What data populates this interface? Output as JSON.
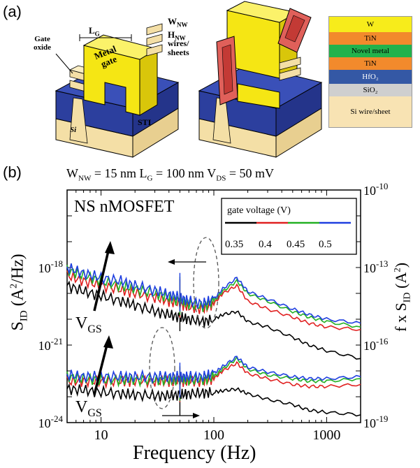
{
  "panel_a": {
    "label": "(a)",
    "device_labels": {
      "lg": "L",
      "lg_sub": "G",
      "wnw": "W",
      "wnw_sub": "NW",
      "hnw": "H",
      "hnw_sub": "NW",
      "wires1": "wires/",
      "wires2": "sheets",
      "gate_oxide1": "Gate",
      "gate_oxide2": "oxide",
      "metal_gate1": "Metal",
      "metal_gate2": "gate",
      "sti": "STI",
      "si": "Si"
    },
    "stack_layers": [
      {
        "label": "W",
        "color": "#f7ec1b"
      },
      {
        "label": "TiN",
        "color": "#f28a2c"
      },
      {
        "label": "Novel metal",
        "color": "#22b24c"
      },
      {
        "label": "TiN",
        "color": "#f28a2c"
      },
      {
        "label": "HfO₂",
        "color": "#3458a5"
      },
      {
        "label": "SiO₂",
        "color": "#cfcfcf"
      },
      {
        "label": "Si wire/sheet",
        "color": "#f8e3b3"
      }
    ]
  },
  "panel_b": {
    "label": "(b)",
    "condition_parts": [
      "W",
      "NW",
      " = 15 nm  L",
      "G",
      " = 100 nm V",
      "DS",
      " = 50 mV"
    ],
    "chart_title": "NS nMOSFET",
    "ylabel_left": "S",
    "ylabel_left_sub": "ID",
    "ylabel_left_rest": " (A",
    "ylabel_left_sup": "2",
    "ylabel_left_end": "/Hz)",
    "ylabel_right": "f x S",
    "ylabel_right_sub": "ID",
    "ylabel_right_rest": " (A",
    "ylabel_right_sup": "2",
    "ylabel_right_end": ")",
    "xlabel": "Frequency (Hz)",
    "vgs_label": "V",
    "vgs_sub": "GS",
    "legend_title": "gate voltage  (V)",
    "legend_values": [
      "0.35",
      "0.4",
      "0.45",
      "0.5"
    ]
  },
  "chart_data": {
    "type": "line",
    "title": "NS nMOSFET",
    "xlabel": "Frequency (Hz)",
    "ylabel": "S_ID (A²/Hz)",
    "ylabel_right": "f x S_ID (A²)",
    "xscale": "log",
    "yscale": "log",
    "xlim": [
      5,
      2000
    ],
    "ylim": [
      1e-24,
      1e-15
    ],
    "ylim_right": [
      1e-19,
      1e-10
    ],
    "x_ticks": [
      "10",
      "100",
      "1000"
    ],
    "y_ticks_left": [
      {
        "base": "10",
        "exp": "-18",
        "value": 1e-18
      },
      {
        "base": "10",
        "exp": "-21",
        "value": 1e-21
      },
      {
        "base": "10",
        "exp": "-24",
        "value": 1e-24
      }
    ],
    "y_ticks_right": [
      {
        "base": "10",
        "exp": "-10",
        "value": 1e-10
      },
      {
        "base": "10",
        "exp": "-13",
        "value": 1e-13
      },
      {
        "base": "10",
        "exp": "-16",
        "value": 1e-16
      },
      {
        "base": "10",
        "exp": "-19",
        "value": 1e-19
      }
    ],
    "legend_placement": "top-right",
    "x": [
      5,
      7,
      10,
      15,
      20,
      30,
      40,
      50,
      60,
      80,
      100,
      120,
      160,
      200,
      300,
      500,
      700,
      1000,
      2000
    ],
    "series_sid": [
      {
        "name": "0.35",
        "color": "#000000",
        "values": [
          2e-19,
          1.2e-19,
          8e-20,
          5e-20,
          3.5e-20,
          2e-20,
          1.5e-20,
          1.2e-20,
          1e-20,
          8e-21,
          1e-20,
          1.5e-20,
          2e-20,
          8e-21,
          5e-21,
          2e-21,
          1e-21,
          6e-22,
          3e-22
        ]
      },
      {
        "name": "0.4",
        "color": "#e02020",
        "values": [
          5e-19,
          3e-19,
          2e-19,
          1.4e-19,
          1e-19,
          7e-20,
          5e-20,
          4e-20,
          3e-20,
          2.5e-20,
          4e-20,
          1e-19,
          2e-19,
          5e-20,
          2.5e-20,
          1.2e-20,
          7e-21,
          5e-21,
          4e-21
        ]
      },
      {
        "name": "0.45",
        "color": "#22b022",
        "values": [
          8e-19,
          5e-19,
          3e-19,
          2e-19,
          1.5e-19,
          1e-19,
          7e-20,
          5e-20,
          4e-20,
          3e-20,
          5e-20,
          1.2e-19,
          3e-19,
          1e-19,
          5e-20,
          2e-20,
          1.2e-20,
          8e-21,
          5e-21
        ]
      },
      {
        "name": "0.5",
        "color": "#1f3fe0",
        "values": [
          1e-18,
          6e-19,
          4e-19,
          3e-19,
          2e-19,
          1.3e-19,
          9e-20,
          7e-20,
          5e-20,
          4e-20,
          6e-20,
          1.5e-19,
          4e-19,
          1.2e-19,
          6e-20,
          2.5e-20,
          1.5e-20,
          1e-20,
          7e-21
        ]
      }
    ],
    "series_fsid": [
      {
        "name": "0.35",
        "color": "#000000",
        "values": [
          2e-18,
          1.8e-18,
          1.5e-18,
          1.3e-18,
          1.2e-18,
          1.1e-18,
          1.1e-18,
          1.2e-18,
          1.3e-18,
          1.4e-18,
          1.5e-18,
          1.7e-18,
          2e-18,
          1.3e-18,
          8e-19,
          5e-19,
          3e-19,
          2.5e-19,
          2e-19
        ]
      },
      {
        "name": "0.4",
        "color": "#e02020",
        "values": [
          4e-18,
          4e-18,
          4e-18,
          4e-18,
          4e-18,
          4e-18,
          4e-18,
          4e-18,
          4e-18,
          4e-18,
          5e-18,
          1e-17,
          2e-17,
          8e-18,
          5e-18,
          3e-18,
          2.5e-18,
          2.5e-18,
          3e-18
        ]
      },
      {
        "name": "0.45",
        "color": "#22b022",
        "values": [
          6e-18,
          5e-18,
          4.5e-18,
          4.5e-18,
          4.5e-18,
          4.5e-18,
          4.5e-18,
          4.5e-18,
          4.5e-18,
          4.5e-18,
          6e-18,
          1.2e-17,
          3e-17,
          1.2e-17,
          7e-18,
          5e-18,
          4e-18,
          4e-18,
          5e-18
        ]
      },
      {
        "name": "0.5",
        "color": "#1f3fe0",
        "values": [
          7e-18,
          6e-18,
          6e-18,
          6e-18,
          6e-18,
          6e-18,
          6e-18,
          6e-18,
          6e-18,
          6e-18,
          8e-18,
          1.5e-17,
          3.5e-17,
          1.4e-17,
          9e-18,
          6e-18,
          5e-18,
          5e-18,
          6e-18
        ]
      }
    ]
  }
}
